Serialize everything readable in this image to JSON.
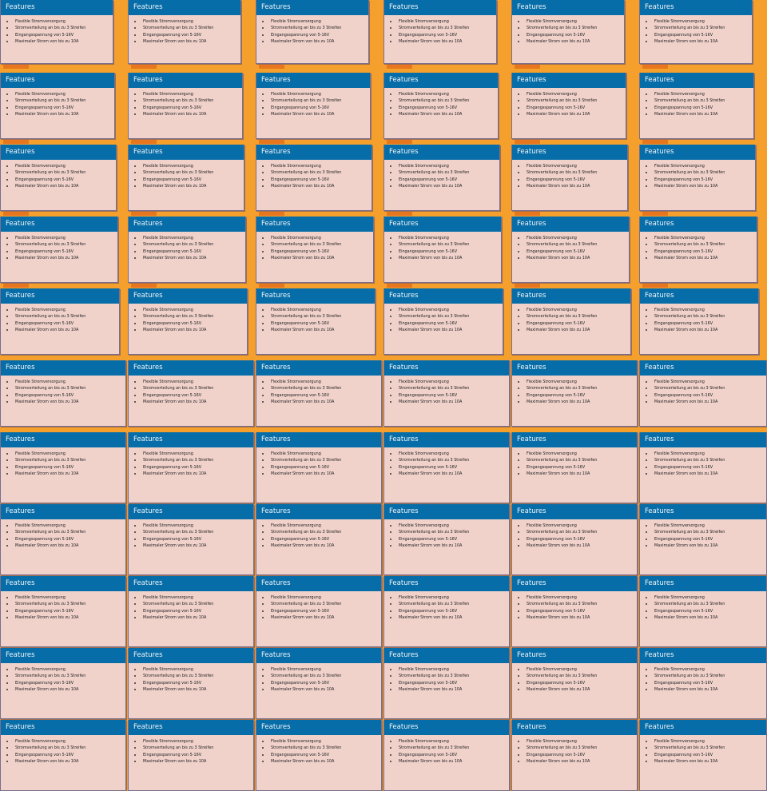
{
  "colors": {
    "background": "#f59f2c",
    "header": "#066da8",
    "panel_body": "#f0d2cb",
    "panel_border": "#7a6f8c"
  },
  "panel": {
    "title": "Features",
    "items": [
      "Flexible Stromversorgung",
      "Stromverteilung an bis zu 3 Streifen",
      "Eingangsspannung von 5-16V",
      "Maximaler Strom von bis zu 10A"
    ]
  },
  "grid": {
    "columns": 6,
    "rows": 11,
    "panel_count": 66
  }
}
